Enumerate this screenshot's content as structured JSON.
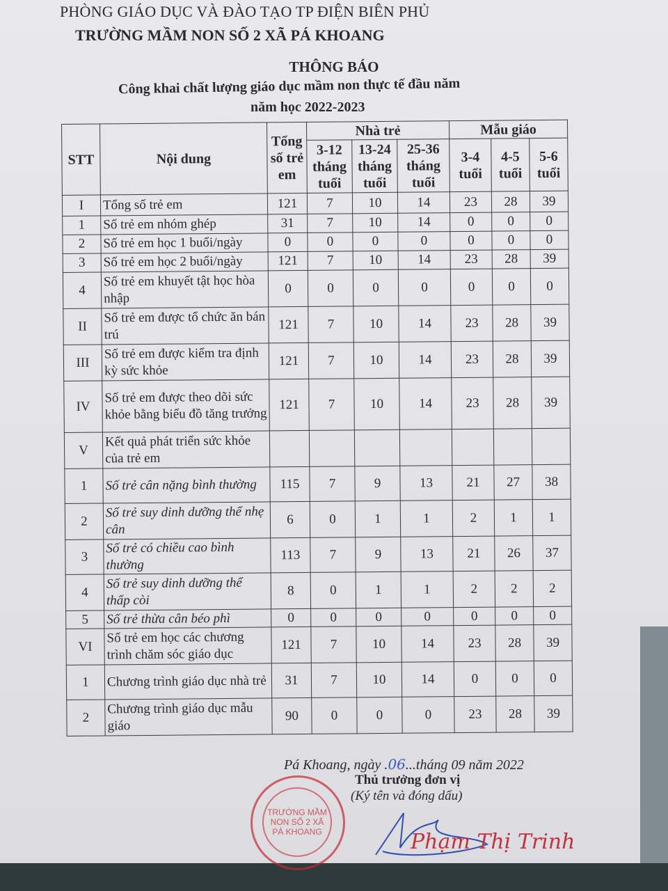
{
  "header": {
    "department": "PHÒNG GIÁO DỤC VÀ ĐÀO TẠO TP ĐIỆN BIÊN PHỦ",
    "school": "TRƯỜNG MẦM NON SỐ 2 XÃ PÁ KHOANG"
  },
  "title": "THÔNG BÁO",
  "subtitle": "Công khai chất lượng giáo dục mầm non thực tế đầu năm",
  "school_year": "năm học 2022-2023",
  "table": {
    "headers": {
      "stt": "STT",
      "content": "Nội dung",
      "total": "Tổng số trẻ em",
      "nursery": "Nhà trẻ",
      "kindergarten": "Mẫu giáo",
      "nursery_ages": [
        "3-12 tháng tuổi",
        "13-24 tháng tuổi",
        "25-36 tháng tuổi"
      ],
      "kg_ages": [
        "3-4 tuổi",
        "4-5 tuổi",
        "5-6 tuổi"
      ]
    },
    "rows": [
      {
        "stt": "I",
        "content": "Tổng số trẻ em",
        "values": [
          "121",
          "7",
          "10",
          "14",
          "23",
          "28",
          "39"
        ],
        "italic": false,
        "h": 30
      },
      {
        "stt": "1",
        "content": "Số trẻ em nhóm ghép",
        "values": [
          "31",
          "7",
          "10",
          "14",
          "0",
          "0",
          "0"
        ],
        "italic": false,
        "h": 27
      },
      {
        "stt": "2",
        "content": "Số trẻ em học 1 buổi/ngày",
        "values": [
          "0",
          "0",
          "0",
          "0",
          "0",
          "0",
          "0"
        ],
        "italic": false,
        "h": 27
      },
      {
        "stt": "3",
        "content": "Số trẻ em học 2 buổi/ngày",
        "values": [
          "121",
          "7",
          "10",
          "14",
          "23",
          "28",
          "39"
        ],
        "italic": false,
        "h": 27
      },
      {
        "stt": "4",
        "content": "Số trẻ em khuyết tật học hòa nhập",
        "values": [
          "0",
          "0",
          "0",
          "0",
          "0",
          "0",
          "0"
        ],
        "italic": false,
        "h": 52
      },
      {
        "stt": "II",
        "content": "Số trẻ em được tổ chức ăn bán trú",
        "values": [
          "121",
          "7",
          "10",
          "14",
          "23",
          "28",
          "39"
        ],
        "italic": false,
        "h": 52
      },
      {
        "stt": "III",
        "content": "Số trẻ em được kiểm tra định kỳ sức khỏe",
        "values": [
          "121",
          "7",
          "10",
          "14",
          "23",
          "28",
          "39"
        ],
        "italic": false,
        "h": 52
      },
      {
        "stt": "IV",
        "content": "Số trẻ em được theo dõi sức khỏe bằng biểu đồ tăng trưởng",
        "values": [
          "121",
          "7",
          "10",
          "14",
          "23",
          "28",
          "39"
        ],
        "italic": false,
        "h": 74
      },
      {
        "stt": "V",
        "content": "Kết quả phát triển sức khỏe của trẻ em",
        "values": [
          "",
          "",
          "",
          "",
          "",
          "",
          ""
        ],
        "italic": false,
        "h": 52
      },
      {
        "stt": "1",
        "content": "Số trẻ cân nặng bình thường",
        "values": [
          "115",
          "7",
          "9",
          "13",
          "21",
          "27",
          "38"
        ],
        "italic": true,
        "h": 50
      },
      {
        "stt": "2",
        "content": "Số trẻ suy dinh dưỡng thể nhẹ cân",
        "values": [
          "6",
          "0",
          "1",
          "1",
          "2",
          "1",
          "1"
        ],
        "italic": true,
        "h": 52
      },
      {
        "stt": "3",
        "content": "Số trẻ có chiều cao bình thường",
        "values": [
          "113",
          "7",
          "9",
          "13",
          "21",
          "26",
          "37"
        ],
        "italic": true,
        "h": 50
      },
      {
        "stt": "4",
        "content": "Số trẻ suy dinh dưỡng thể thấp còi",
        "values": [
          "8",
          "0",
          "1",
          "1",
          "2",
          "2",
          "2"
        ],
        "italic": true,
        "h": 52
      },
      {
        "stt": "5",
        "content": "Số trẻ thừa cân béo phì",
        "values": [
          "0",
          "0",
          "0",
          "0",
          "0",
          "0",
          "0"
        ],
        "italic": true,
        "h": 26
      },
      {
        "stt": "VI",
        "content": "Số trẻ em học các chương trình chăm sóc giáo dục",
        "values": [
          "121",
          "7",
          "10",
          "14",
          "23",
          "28",
          "39"
        ],
        "italic": false,
        "h": 52
      },
      {
        "stt": "1",
        "content": "Chương trình giáo dục nhà trẻ",
        "values": [
          "31",
          "7",
          "10",
          "14",
          "0",
          "0",
          "0"
        ],
        "italic": false,
        "h": 50
      },
      {
        "stt": "2",
        "content": "Chương trình giáo dục mẫu giáo",
        "values": [
          "90",
          "0",
          "0",
          "0",
          "23",
          "28",
          "39"
        ],
        "italic": false,
        "h": 52
      }
    ]
  },
  "footer": {
    "place_date_prefix": "Pá Khoang, ngày .",
    "day_handwritten": "06",
    "place_date_suffix": "...tháng 09 năm 2022",
    "signer_title": "Thủ trưởng đơn vị",
    "sign_note": "(Ký tên và đóng dấu)",
    "signer_name": "Phạm Thị Trinh",
    "stamp_text": "TRƯỜNG MẦM NON SỐ 2 XÃ PÁ KHOANG"
  },
  "colors": {
    "stamp": "#c8283a",
    "ink_blue": "#3b5bb5"
  }
}
